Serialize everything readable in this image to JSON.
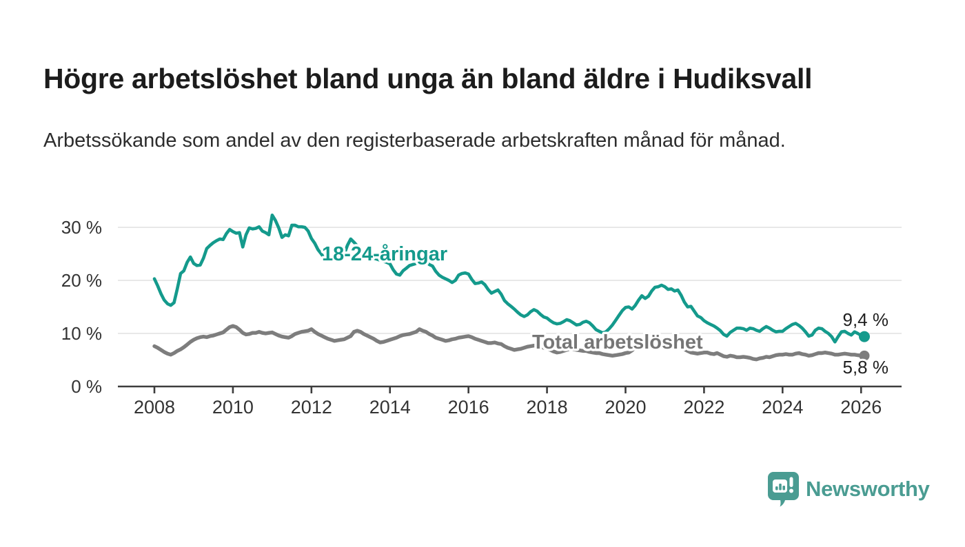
{
  "header": {
    "title": "Högre arbetslöshet bland unga än bland äldre i Hudiksvall",
    "subtitle": "Arbetssökande som andel av den registerbaserade arbetskraften månad för månad."
  },
  "footer": {
    "brand": "Newsworthy",
    "logo_icon": "newsworthy-speech-bubble-bar-chart"
  },
  "colors": {
    "youth_line": "#149a8c",
    "total_line": "#7d7d7d",
    "total_label": "#767676",
    "gridline": "#d9d9d9",
    "axis": "#3d3d3d",
    "tick_label": "#333333",
    "end_label": "#1f1f1f",
    "brand_teal": "#4a9c92"
  },
  "chart_data": {
    "type": "line",
    "title": "Högre arbetslöshet bland unga än bland äldre i Hudiksvall",
    "xlabel": "",
    "ylabel": "",
    "x_unit": "month",
    "x_start": "2008-01",
    "x_end": "2026-02",
    "ylim": [
      0,
      33
    ],
    "grid": "horizontal",
    "legend_position": "inline-labels",
    "x_tick_years": [
      2008,
      2010,
      2012,
      2014,
      2016,
      2018,
      2020,
      2022,
      2024,
      2026
    ],
    "y_ticks": [
      {
        "value": 0,
        "label": "0 %"
      },
      {
        "value": 10,
        "label": "10 %"
      },
      {
        "value": 20,
        "label": "20 %"
      },
      {
        "value": 30,
        "label": "30 %"
      }
    ],
    "series": [
      {
        "key": "youth",
        "name": "18-24-åringar",
        "end_label": "9,4 %",
        "end_value": 9.4,
        "color": "#149a8c",
        "values": [
          20.3,
          19.0,
          17.5,
          16.3,
          15.6,
          15.3,
          15.8,
          18.4,
          21.3,
          21.8,
          23.4,
          24.4,
          23.2,
          22.8,
          22.9,
          24.2,
          26.0,
          26.6,
          27.1,
          27.5,
          27.8,
          27.7,
          28.8,
          29.6,
          29.2,
          28.9,
          29.0,
          26.3,
          28.6,
          29.9,
          29.7,
          29.8,
          30.1,
          29.3,
          29.0,
          28.6,
          32.3,
          31.3,
          29.9,
          28.1,
          28.6,
          28.4,
          30.4,
          30.4,
          30.1,
          30.1,
          30.0,
          29.3,
          27.9,
          27.0,
          25.8,
          25.0,
          24.1,
          23.9,
          23.9,
          24.1,
          24.3,
          23.9,
          24.9,
          26.6,
          27.8,
          27.2,
          26.5,
          25.8,
          25.2,
          24.8,
          24.5,
          24.2,
          24.0,
          23.8,
          23.6,
          23.4,
          23.1,
          22.0,
          21.2,
          21.0,
          21.8,
          22.3,
          22.8,
          23.0,
          23.2,
          23.4,
          23.5,
          23.5,
          23.0,
          22.7,
          21.7,
          21.0,
          20.6,
          20.3,
          20.0,
          19.6,
          20.0,
          21.0,
          21.3,
          21.4,
          21.2,
          20.2,
          19.4,
          19.5,
          19.7,
          19.2,
          18.3,
          17.6,
          17.9,
          18.2,
          17.4,
          16.2,
          15.6,
          15.1,
          14.6,
          14.0,
          13.5,
          13.2,
          13.5,
          14.1,
          14.5,
          14.2,
          13.6,
          13.1,
          12.9,
          12.4,
          12.0,
          11.8,
          11.9,
          12.2,
          12.6,
          12.4,
          12.0,
          11.6,
          11.7,
          12.1,
          12.3,
          12.0,
          11.4,
          10.7,
          10.4,
          10.1,
          10.3,
          10.9,
          11.6,
          12.5,
          13.4,
          14.3,
          14.9,
          15.0,
          14.6,
          15.3,
          16.3,
          17.1,
          16.6,
          17.0,
          18.0,
          18.7,
          18.8,
          19.1,
          18.8,
          18.3,
          18.4,
          18.0,
          18.2,
          17.2,
          15.9,
          15.0,
          15.1,
          14.2,
          13.3,
          13.0,
          12.4,
          12.0,
          11.7,
          11.4,
          11.0,
          10.5,
          9.8,
          9.5,
          10.2,
          10.6,
          11.0,
          11.0,
          10.9,
          10.6,
          11.0,
          10.9,
          10.6,
          10.4,
          10.9,
          11.3,
          11.0,
          10.6,
          10.3,
          10.4,
          10.4,
          10.9,
          11.3,
          11.7,
          11.9,
          11.5,
          11.0,
          10.3,
          9.5,
          9.7,
          10.6,
          11.0,
          10.9,
          10.4,
          10.0,
          9.4,
          8.4,
          9.4,
          10.3,
          10.4,
          10.0,
          9.7,
          10.3,
          10.0,
          9.6,
          9.4
        ]
      },
      {
        "key": "total",
        "name": "Total arbetslöshet",
        "end_label": "5,8 %",
        "end_value": 5.8,
        "color": "#7d7d7d",
        "values": [
          7.6,
          7.3,
          6.9,
          6.5,
          6.2,
          6.0,
          6.3,
          6.7,
          7.0,
          7.4,
          7.9,
          8.4,
          8.8,
          9.1,
          9.3,
          9.4,
          9.3,
          9.5,
          9.6,
          9.8,
          10.0,
          10.2,
          10.7,
          11.2,
          11.4,
          11.2,
          10.7,
          10.1,
          9.8,
          9.9,
          10.1,
          10.1,
          10.3,
          10.1,
          10.0,
          10.1,
          10.2,
          9.9,
          9.6,
          9.4,
          9.3,
          9.2,
          9.5,
          9.9,
          10.1,
          10.3,
          10.4,
          10.5,
          10.8,
          10.3,
          9.9,
          9.6,
          9.3,
          9.0,
          8.8,
          8.6,
          8.7,
          8.8,
          8.9,
          9.2,
          9.5,
          10.3,
          10.5,
          10.3,
          9.9,
          9.6,
          9.3,
          9.0,
          8.6,
          8.3,
          8.4,
          8.6,
          8.8,
          9.0,
          9.2,
          9.5,
          9.7,
          9.8,
          9.9,
          10.1,
          10.3,
          10.8,
          10.5,
          10.3,
          9.9,
          9.6,
          9.2,
          9.0,
          8.8,
          8.6,
          8.7,
          8.9,
          9.0,
          9.2,
          9.3,
          9.4,
          9.5,
          9.3,
          9.0,
          8.8,
          8.6,
          8.4,
          8.2,
          8.2,
          8.3,
          8.1,
          8.0,
          7.6,
          7.3,
          7.1,
          6.9,
          7.0,
          7.1,
          7.3,
          7.5,
          7.6,
          7.7,
          7.7,
          7.5,
          7.3,
          7.1,
          6.9,
          6.6,
          6.4,
          6.5,
          6.7,
          6.9,
          7.1,
          7.0,
          6.9,
          6.8,
          6.7,
          6.7,
          6.5,
          6.4,
          6.3,
          6.3,
          6.1,
          6.0,
          5.9,
          5.8,
          5.9,
          6.0,
          6.1,
          6.3,
          6.4,
          6.8,
          7.4,
          7.9,
          8.3,
          8.5,
          8.6,
          8.7,
          8.7,
          8.8,
          8.8,
          8.8,
          8.7,
          8.4,
          8.1,
          7.8,
          7.4,
          7.0,
          6.7,
          6.4,
          6.3,
          6.2,
          6.3,
          6.4,
          6.4,
          6.2,
          6.1,
          6.3,
          6.0,
          5.7,
          5.6,
          5.8,
          5.7,
          5.5,
          5.5,
          5.6,
          5.5,
          5.4,
          5.2,
          5.1,
          5.3,
          5.4,
          5.6,
          5.5,
          5.7,
          5.9,
          6.0,
          6.0,
          6.1,
          6.0,
          6.0,
          6.2,
          6.3,
          6.1,
          6.0,
          5.8,
          5.9,
          6.1,
          6.3,
          6.3,
          6.4,
          6.3,
          6.2,
          6.0,
          6.0,
          6.1,
          6.2,
          6.1,
          6.0,
          6.0,
          5.9,
          5.8,
          5.8
        ]
      }
    ]
  }
}
